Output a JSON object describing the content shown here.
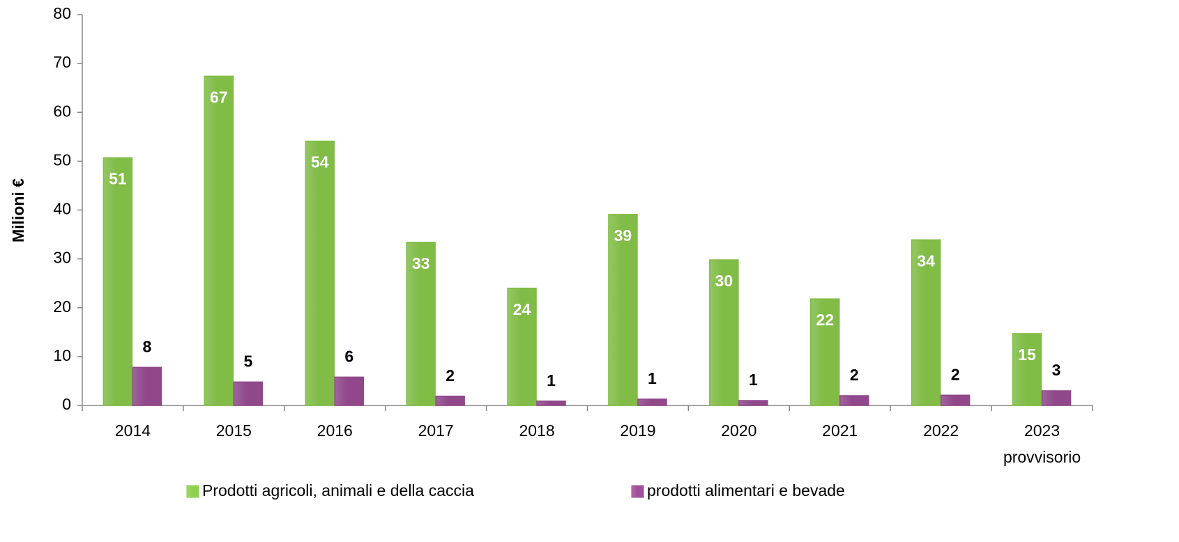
{
  "chart_data": {
    "type": "bar",
    "y_label": "Milioni €",
    "categories": [
      "2014",
      "2015",
      "2016",
      "2017",
      "2018",
      "2019",
      "2020",
      "2021",
      "2022",
      "2023 provvisorio"
    ],
    "series": [
      {
        "name": "Prodotti agricoli, animali e della caccia",
        "color": "#8fd14f",
        "values": [
          50.7,
          67.4,
          54.1,
          33.4,
          24.0,
          39.1,
          29.8,
          21.8,
          33.9,
          14.7
        ],
        "value_labels": [
          "51",
          "67",
          "54",
          "33",
          "24",
          "39",
          "30",
          "22",
          "34",
          "15"
        ]
      },
      {
        "name": "prodotti alimentari e bevade",
        "color": "#a0509a",
        "values": [
          7.8,
          4.8,
          5.8,
          1.9,
          0.9,
          1.3,
          1.0,
          2.0,
          2.1,
          3.0
        ],
        "value_labels": [
          "8",
          "5",
          "6",
          "2",
          "1",
          "1",
          "1",
          "2",
          "2",
          "3"
        ]
      }
    ],
    "ylim": [
      0,
      80
    ],
    "yticks": [
      0,
      10,
      20,
      30,
      40,
      50,
      60,
      70,
      80
    ],
    "grid": false,
    "legend": "bottom"
  }
}
